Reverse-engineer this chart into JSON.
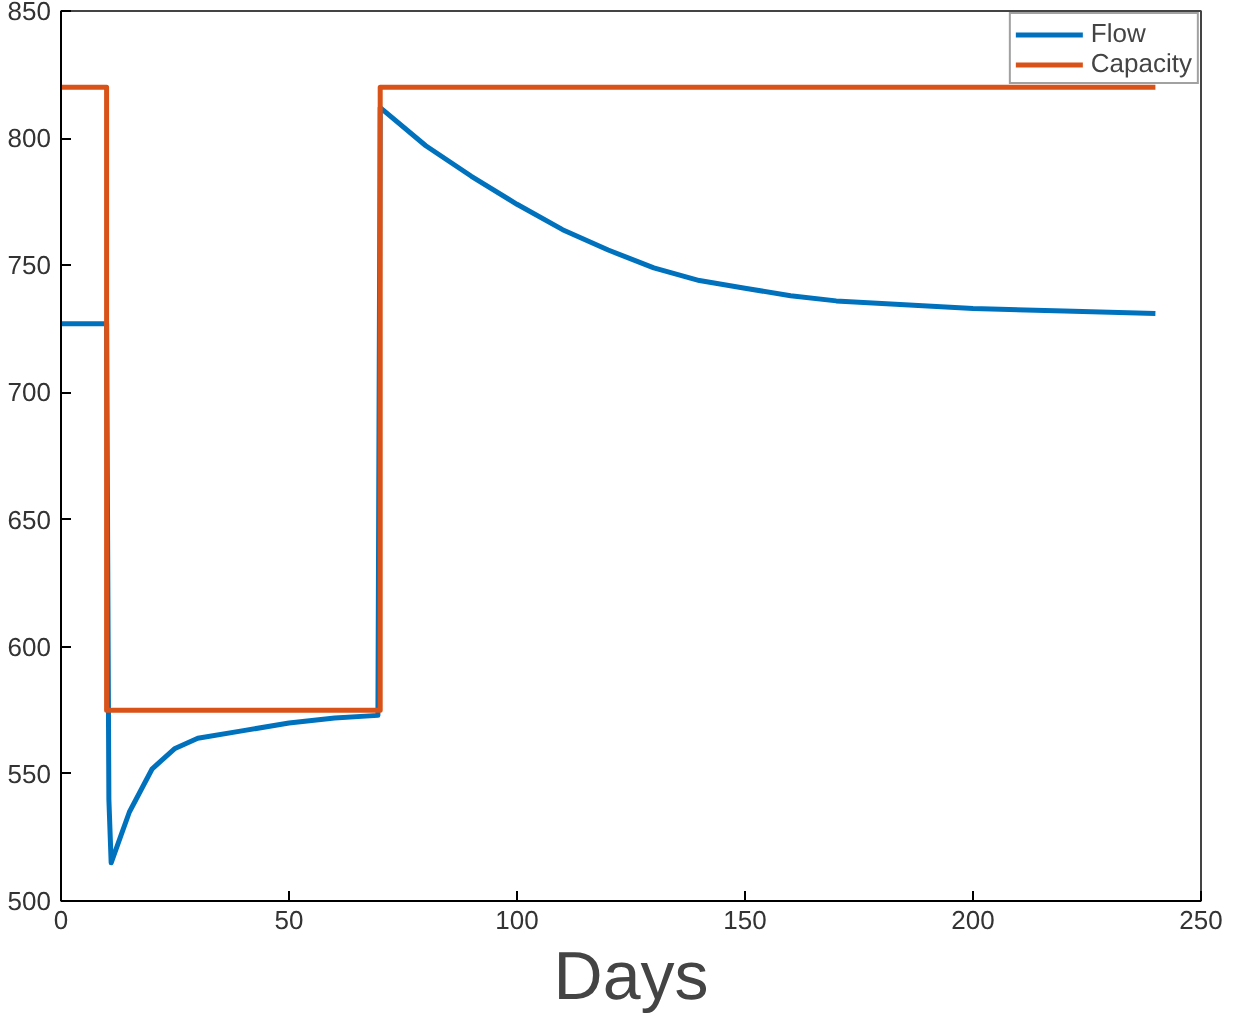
{
  "chart_data": {
    "type": "line",
    "xlabel": "Days",
    "xlim": [
      0,
      250
    ],
    "ylim": [
      500,
      850
    ],
    "xticks": [
      0,
      50,
      100,
      150,
      200,
      250
    ],
    "yticks": [
      500,
      550,
      600,
      650,
      700,
      750,
      800,
      850
    ],
    "grid": false,
    "legend": "top right",
    "marker": "none",
    "line_style": "solid",
    "series": [
      {
        "name": "Flow",
        "color": "#0072bd",
        "x": [
          0,
          10,
          10.5,
          11,
          13,
          15,
          20,
          25,
          30,
          40,
          50,
          60,
          69.5,
          70,
          80,
          90,
          100,
          110,
          120,
          130,
          140,
          150,
          160,
          170,
          180,
          200,
          220,
          240
        ],
        "values": [
          727,
          727,
          540,
          515,
          525,
          535,
          552,
          560,
          564,
          567,
          570,
          572,
          573,
          812,
          797,
          785,
          774,
          764,
          756,
          749,
          744,
          741,
          738,
          736,
          735,
          733,
          732,
          731
        ]
      },
      {
        "name": "Capacity",
        "color": "#d95319",
        "x": [
          0,
          10,
          10,
          70,
          70,
          240
        ],
        "values": [
          820,
          820,
          575,
          575,
          820,
          820
        ]
      }
    ]
  }
}
